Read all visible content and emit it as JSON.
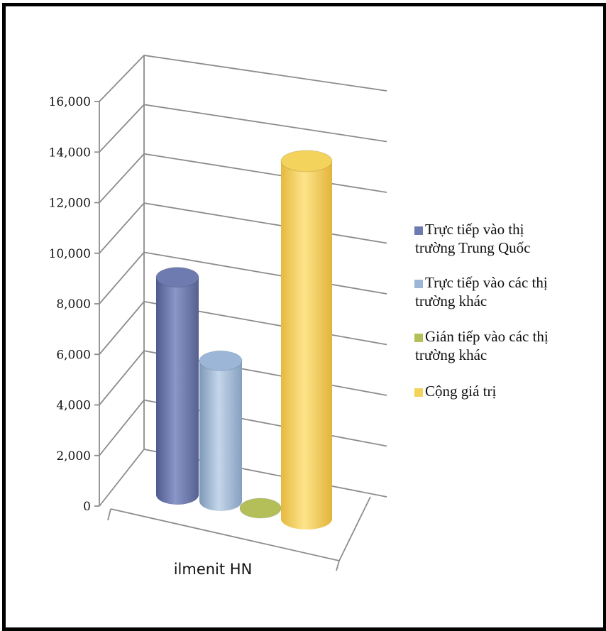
{
  "chart_data": {
    "type": "bar",
    "style": "3d-cylinder",
    "categories": [
      "ilmenit HN"
    ],
    "series": [
      {
        "name": "Trực tiếp vào thị trường Trung Quốc",
        "values": [
          8600
        ],
        "color": "#6e7bb0"
      },
      {
        "name": "Trực tiếp vào các thị trường khác",
        "values": [
          5550
        ],
        "color": "#9bb6d6"
      },
      {
        "name": "Gián tiếp vào các thị trường khác",
        "values": [
          0
        ],
        "color": "#b4bf5a"
      },
      {
        "name": "Cộng giá trị",
        "values": [
          14150
        ],
        "color": "#f3d35c"
      }
    ],
    "ylim": [
      0,
      16000
    ],
    "yticks": [
      "0",
      "2,000",
      "4,000",
      "6,000",
      "8,000",
      "10,000",
      "12,000",
      "14,000",
      "16,000"
    ],
    "legend": "right",
    "grid": true
  }
}
